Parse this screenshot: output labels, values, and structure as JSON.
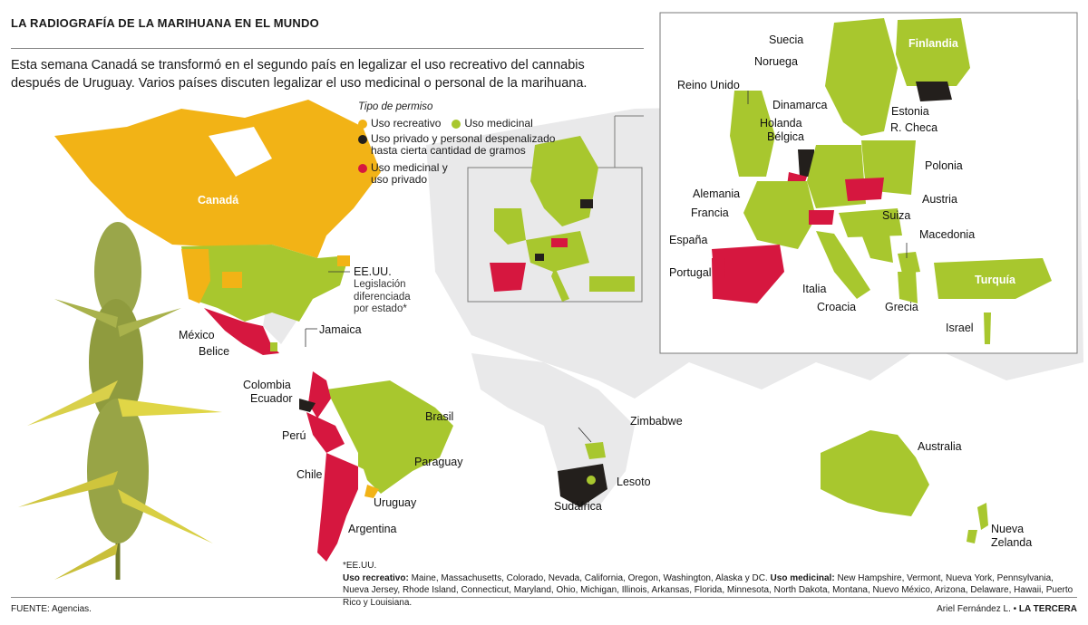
{
  "header": {
    "title": "LA RADIOGRAFÍA DE LA MARIHUANA EN EL MUNDO",
    "intro": "Esta semana Canadá se transformó en el segundo país en legalizar el uso recreativo del cannabis después de Uruguay. Varios países discuten legalizar el uso medicinal o personal de la marihuana."
  },
  "colors": {
    "recreational": "#f2b316",
    "medicinal": "#a8c72e",
    "private": "#231f1c",
    "medicinal_private": "#d6173f",
    "land": "#e9e9ea",
    "inset_border": "#7a7a7a"
  },
  "legend": {
    "title": "Tipo de permiso",
    "items": [
      {
        "label": "Uso recreativo",
        "color": "#f2b316"
      },
      {
        "label": "Uso medicinal",
        "color": "#a8c72e"
      },
      {
        "label": "Uso privado y personal despenalizado hasta cierta cantidad de gramos",
        "color": "#231f1c"
      },
      {
        "label": "Uso medicinal y uso privado",
        "color": "#d6173f"
      }
    ]
  },
  "labels": {
    "canada": "Canadá",
    "eeuu": "EE.UU.",
    "eeuu_note": "Legislación diferenciada por estado*",
    "mexico": "México",
    "belice": "Belice",
    "jamaica": "Jamaica",
    "colombia": "Colombia",
    "ecuador": "Ecuador",
    "peru": "Perú",
    "brasil": "Brasil",
    "paraguay": "Paraguay",
    "chile": "Chile",
    "uruguay": "Uruguay",
    "argentina": "Argentina",
    "zimbabwe": "Zimbabwe",
    "lesoto": "Lesoto",
    "sudafrica": "Sudáfrica",
    "australia": "Australia",
    "nueva_zelanda": "Nueva Zelanda",
    "suecia": "Suecia",
    "noruega": "Noruega",
    "finlandia": "Finlandia",
    "reino_unido": "Reino Unido",
    "dinamarca": "Dinamarca",
    "estonia": "Estonia",
    "holanda": "Holanda",
    "belgica": "Bélgica",
    "r_checa": "R. Checa",
    "polonia": "Polonia",
    "alemania": "Alemania",
    "austria": "Austria",
    "francia": "Francia",
    "suiza": "Suiza",
    "espana": "España",
    "macedonia": "Macedonia",
    "portugal": "Portugal",
    "turquia": "Turquía",
    "italia": "Italia",
    "croacia": "Croacia",
    "grecia": "Grecia",
    "israel": "Israel"
  },
  "footnote": {
    "marker": "*EE.UU.",
    "recreational_heading": "Uso recreativo:",
    "recreational_states": "Maine, Massachusetts, Colorado, Nevada, California, Oregon, Washington, Alaska y DC.",
    "medicinal_heading": "Uso medicinal:",
    "medicinal_states": "New Hampshire, Vermont, Nueva York, Pennsylvania, Nueva Jersey, Rhode Island, Connecticut, Maryland, Ohio, Michigan, Illinois, Arkansas, Florida, Minnesota, North Dakota, Montana, Nuevo México, Arizona, Delaware, Hawaii, Puerto Rico y Louisiana."
  },
  "footer": {
    "source": "FUENTE: Agencias.",
    "author": "Ariel Fernández L. •",
    "publisher": "LA TERCERA"
  }
}
